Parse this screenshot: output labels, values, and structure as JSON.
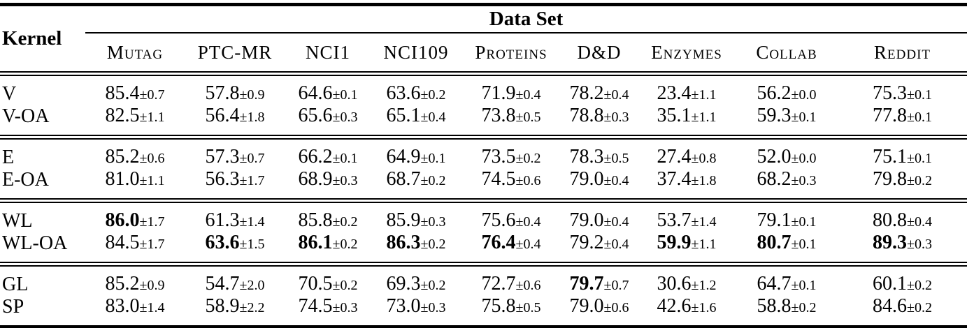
{
  "header": {
    "kernel": "Kernel",
    "dataset": "Data Set",
    "columns": [
      "Mutag",
      "PTC-MR",
      "NCI1",
      "NCI109",
      "Proteins",
      "D&D",
      "Enzymes",
      "Collab",
      "Reddit"
    ]
  },
  "groups": [
    {
      "rows": [
        {
          "kernel": "V",
          "cells": [
            {
              "m": "85.4",
              "s": "±0.7",
              "b": false
            },
            {
              "m": "57.8",
              "s": "±0.9",
              "b": false
            },
            {
              "m": "64.6",
              "s": "±0.1",
              "b": false
            },
            {
              "m": "63.6",
              "s": "±0.2",
              "b": false
            },
            {
              "m": "71.9",
              "s": "±0.4",
              "b": false
            },
            {
              "m": "78.2",
              "s": "±0.4",
              "b": false
            },
            {
              "m": "23.4",
              "s": "±1.1",
              "b": false
            },
            {
              "m": "56.2",
              "s": "±0.0",
              "b": false
            },
            {
              "m": "75.3",
              "s": "±0.1",
              "b": false
            }
          ]
        },
        {
          "kernel": "V-OA",
          "cells": [
            {
              "m": "82.5",
              "s": "±1.1",
              "b": false
            },
            {
              "m": "56.4",
              "s": "±1.8",
              "b": false
            },
            {
              "m": "65.6",
              "s": "±0.3",
              "b": false
            },
            {
              "m": "65.1",
              "s": "±0.4",
              "b": false
            },
            {
              "m": "73.8",
              "s": "±0.5",
              "b": false
            },
            {
              "m": "78.8",
              "s": "±0.3",
              "b": false
            },
            {
              "m": "35.1",
              "s": "±1.1",
              "b": false
            },
            {
              "m": "59.3",
              "s": "±0.1",
              "b": false
            },
            {
              "m": "77.8",
              "s": "±0.1",
              "b": false
            }
          ]
        }
      ]
    },
    {
      "rows": [
        {
          "kernel": "E",
          "cells": [
            {
              "m": "85.2",
              "s": "±0.6",
              "b": false
            },
            {
              "m": "57.3",
              "s": "±0.7",
              "b": false
            },
            {
              "m": "66.2",
              "s": "±0.1",
              "b": false
            },
            {
              "m": "64.9",
              "s": "±0.1",
              "b": false
            },
            {
              "m": "73.5",
              "s": "±0.2",
              "b": false
            },
            {
              "m": "78.3",
              "s": "±0.5",
              "b": false
            },
            {
              "m": "27.4",
              "s": "±0.8",
              "b": false
            },
            {
              "m": "52.0",
              "s": "±0.0",
              "b": false
            },
            {
              "m": "75.1",
              "s": "±0.1",
              "b": false
            }
          ]
        },
        {
          "kernel": "E-OA",
          "cells": [
            {
              "m": "81.0",
              "s": "±1.1",
              "b": false
            },
            {
              "m": "56.3",
              "s": "±1.7",
              "b": false
            },
            {
              "m": "68.9",
              "s": "±0.3",
              "b": false
            },
            {
              "m": "68.7",
              "s": "±0.2",
              "b": false
            },
            {
              "m": "74.5",
              "s": "±0.6",
              "b": false
            },
            {
              "m": "79.0",
              "s": "±0.4",
              "b": false
            },
            {
              "m": "37.4",
              "s": "±1.8",
              "b": false
            },
            {
              "m": "68.2",
              "s": "±0.3",
              "b": false
            },
            {
              "m": "79.8",
              "s": "±0.2",
              "b": false
            }
          ]
        }
      ]
    },
    {
      "rows": [
        {
          "kernel": "WL",
          "cells": [
            {
              "m": "86.0",
              "s": "±1.7",
              "b": true
            },
            {
              "m": "61.3",
              "s": "±1.4",
              "b": false
            },
            {
              "m": "85.8",
              "s": "±0.2",
              "b": false
            },
            {
              "m": "85.9",
              "s": "±0.3",
              "b": false
            },
            {
              "m": "75.6",
              "s": "±0.4",
              "b": false
            },
            {
              "m": "79.0",
              "s": "±0.4",
              "b": false
            },
            {
              "m": "53.7",
              "s": "±1.4",
              "b": false
            },
            {
              "m": "79.1",
              "s": "±0.1",
              "b": false
            },
            {
              "m": "80.8",
              "s": "±0.4",
              "b": false
            }
          ]
        },
        {
          "kernel": "WL-OA",
          "cells": [
            {
              "m": "84.5",
              "s": "±1.7",
              "b": false
            },
            {
              "m": "63.6",
              "s": "±1.5",
              "b": true
            },
            {
              "m": "86.1",
              "s": "±0.2",
              "b": true
            },
            {
              "m": "86.3",
              "s": "±0.2",
              "b": true
            },
            {
              "m": "76.4",
              "s": "±0.4",
              "b": true
            },
            {
              "m": "79.2",
              "s": "±0.4",
              "b": false
            },
            {
              "m": "59.9",
              "s": "±1.1",
              "b": true
            },
            {
              "m": "80.7",
              "s": "±0.1",
              "b": true
            },
            {
              "m": "89.3",
              "s": "±0.3",
              "b": true
            }
          ]
        }
      ]
    },
    {
      "rows": [
        {
          "kernel": "GL",
          "cells": [
            {
              "m": "85.2",
              "s": "±0.9",
              "b": false
            },
            {
              "m": "54.7",
              "s": "±2.0",
              "b": false
            },
            {
              "m": "70.5",
              "s": "±0.2",
              "b": false
            },
            {
              "m": "69.3",
              "s": "±0.2",
              "b": false
            },
            {
              "m": "72.7",
              "s": "±0.6",
              "b": false
            },
            {
              "m": "79.7",
              "s": "±0.7",
              "b": true
            },
            {
              "m": "30.6",
              "s": "±1.2",
              "b": false
            },
            {
              "m": "64.7",
              "s": "±0.1",
              "b": false
            },
            {
              "m": "60.1",
              "s": "±0.2",
              "b": false
            }
          ]
        },
        {
          "kernel": "SP",
          "cells": [
            {
              "m": "83.0",
              "s": "±1.4",
              "b": false
            },
            {
              "m": "58.9",
              "s": "±2.2",
              "b": false
            },
            {
              "m": "74.5",
              "s": "±0.3",
              "b": false
            },
            {
              "m": "73.0",
              "s": "±0.3",
              "b": false
            },
            {
              "m": "75.8",
              "s": "±0.5",
              "b": false
            },
            {
              "m": "79.0",
              "s": "±0.6",
              "b": false
            },
            {
              "m": "42.6",
              "s": "±1.6",
              "b": false
            },
            {
              "m": "58.8",
              "s": "±0.2",
              "b": false
            },
            {
              "m": "84.6",
              "s": "±0.2",
              "b": false
            }
          ]
        }
      ]
    }
  ]
}
